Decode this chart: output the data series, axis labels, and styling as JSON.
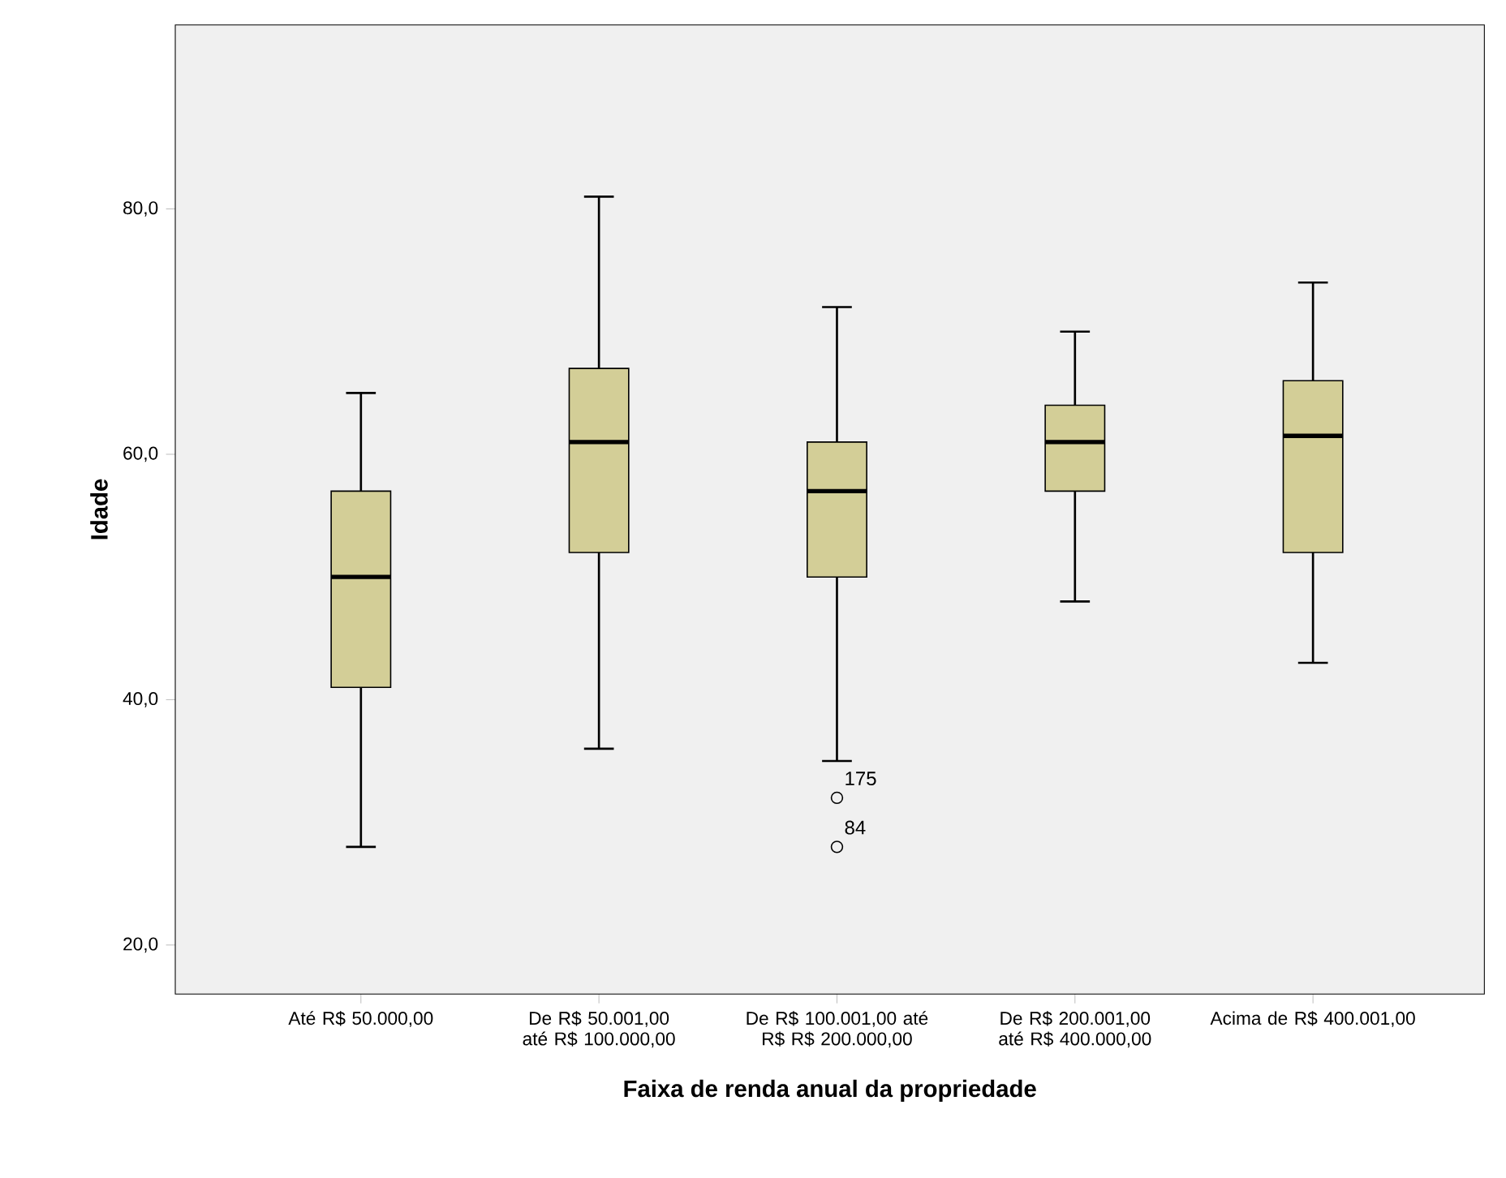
{
  "chart_data": {
    "type": "box",
    "xlabel": "Faixa de renda anual da propriedade",
    "ylabel": "Idade",
    "categories": [
      "Até R$ 50.000,00",
      "De R$ 50.001,00 até R$ 100.000,00",
      "De R$ 100.001,00 até R$ R$ 200.000,00",
      "De R$ 200.001,00 até R$ 400.000,00",
      "Acima de R$ 400.001,00"
    ],
    "series": [
      {
        "color": "#d3ce97",
        "boxes": [
          {
            "low": 28,
            "q1": 41,
            "median": 50,
            "q3": 57,
            "high": 65
          },
          {
            "low": 36,
            "q1": 52,
            "median": 61,
            "q3": 67,
            "high": 81
          },
          {
            "low": 35,
            "q1": 50,
            "median": 57,
            "q3": 61,
            "high": 72,
            "outliers": [
              32,
              28
            ]
          },
          {
            "low": 48,
            "q1": 57,
            "median": 61,
            "q3": 64,
            "high": 70
          },
          {
            "low": 43,
            "q1": 52,
            "median": 61.5,
            "q3": 66,
            "high": 74
          }
        ]
      }
    ],
    "ylim": [
      16,
      95
    ],
    "yticks": [
      {
        "value": 20,
        "label": "20,0"
      },
      {
        "value": 40,
        "label": "40,0"
      },
      {
        "value": 60,
        "label": "60,0"
      },
      {
        "value": 80,
        "label": "80,0"
      }
    ],
    "grid": false,
    "annotations": [
      "175",
      "84"
    ]
  }
}
